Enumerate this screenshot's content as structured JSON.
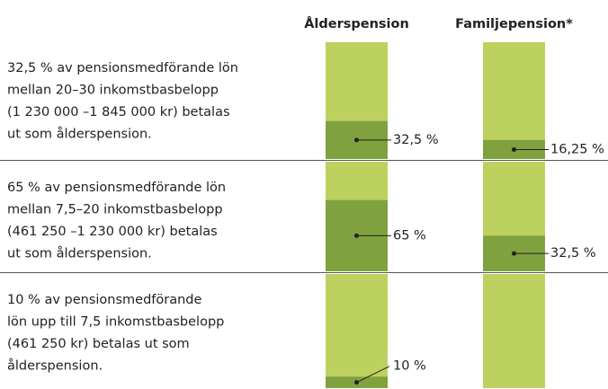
{
  "chart_data": {
    "type": "bar",
    "categories": [
      [
        "32,5 % av pensionsmedförande lön",
        "mellan 20–30 inkomstbasbelopp",
        "(1 230 000 –1 845 000 kr) betalas",
        "ut som ålderspension."
      ],
      [
        "65 % av pensionsmedförande lön",
        "mellan 7,5–20 inkomstbasbelopp",
        "(461 250 –1 230 000 kr) betalas",
        "ut som ålderspension."
      ],
      [
        "10 % av pensionsmedförande",
        "lön upp till 7,5 inkomstbasbelopp",
        "(461 250 kr) betalas ut som",
        "ålderspension."
      ]
    ],
    "series": [
      {
        "name": "Ålderspension",
        "color": "#7fa23e",
        "values": [
          32.5,
          65,
          10
        ],
        "value_labels": [
          "32,5 %",
          "65 %",
          "10 %"
        ]
      },
      {
        "name": "Familjepension*",
        "color": "#7fa23e",
        "values": [
          16.25,
          32.5,
          null
        ],
        "value_labels": [
          "16,25 %",
          "32,5 %",
          null
        ]
      }
    ],
    "background_color": "#bdd15f",
    "ylim": [
      0,
      100
    ]
  }
}
